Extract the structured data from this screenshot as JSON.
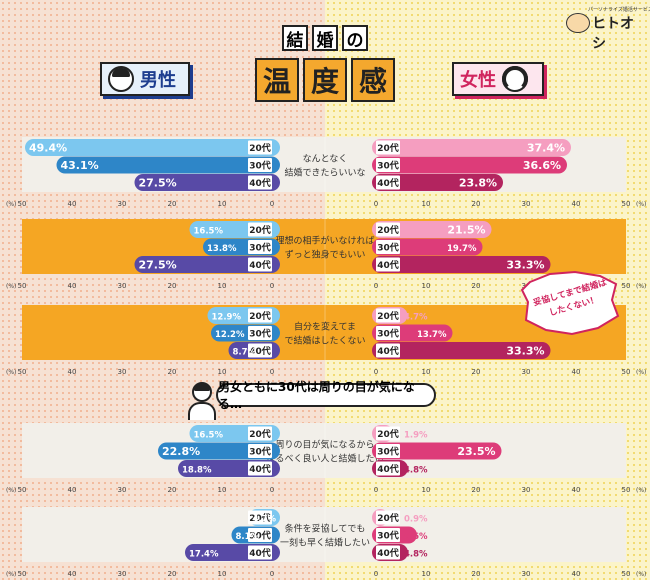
{
  "logo": {
    "subtitle": "パーソナライズ婚活サービス",
    "name": "ヒトオシ"
  },
  "title_top": [
    "結",
    "婚",
    "の"
  ],
  "title_main": [
    "温",
    "度",
    "感"
  ],
  "gender": {
    "male": "男性",
    "female": "女性"
  },
  "bubble": "男女ともに30代は周りの目が気になる…",
  "badge": "妥協してまで結婚はしたくない！",
  "axis_unit": "(%)",
  "colors": {
    "male": [
      "#7cc7ef",
      "#2e86c8",
      "#584aa6"
    ],
    "female": [
      "#f59ec0",
      "#dd3c79",
      "#b3245f"
    ],
    "highlight_panel": "#f5a623",
    "plain_panel": "#f2efe9"
  },
  "chart_data": {
    "type": "bar",
    "orientation": "diverging-horizontal",
    "xlim": [
      0,
      50
    ],
    "ticks": [
      50,
      40,
      30,
      20,
      10,
      0
    ],
    "age_groups": [
      "20代",
      "30代",
      "40代"
    ],
    "groups": [
      {
        "label": "なんとなく結婚できたらいいな",
        "highlight": false,
        "male": [
          49.4,
          43.1,
          27.5
        ],
        "female": [
          37.4,
          36.6,
          23.8
        ]
      },
      {
        "label": "理想の相手がいなければずっと独身でもいい",
        "highlight": true,
        "male": [
          16.5,
          13.8,
          27.5
        ],
        "female": [
          21.5,
          19.7,
          33.3
        ]
      },
      {
        "label": "自分を変えてまで結婚はしたくない",
        "highlight": true,
        "male": [
          12.9,
          12.2,
          8.7
        ],
        "female": [
          4.7,
          13.7,
          33.3
        ]
      },
      {
        "label": "周りの目が気になるからなるべく良い人と結婚したい",
        "highlight": false,
        "male": [
          16.5,
          22.8,
          18.8
        ],
        "female": [
          1.9,
          23.5,
          4.8
        ]
      },
      {
        "label": "条件を妥協してでも一刻も早く結婚したい",
        "highlight": false,
        "male": [
          4.7,
          8.1,
          17.4
        ],
        "female": [
          0.9,
          6.6,
          4.8
        ]
      }
    ]
  }
}
